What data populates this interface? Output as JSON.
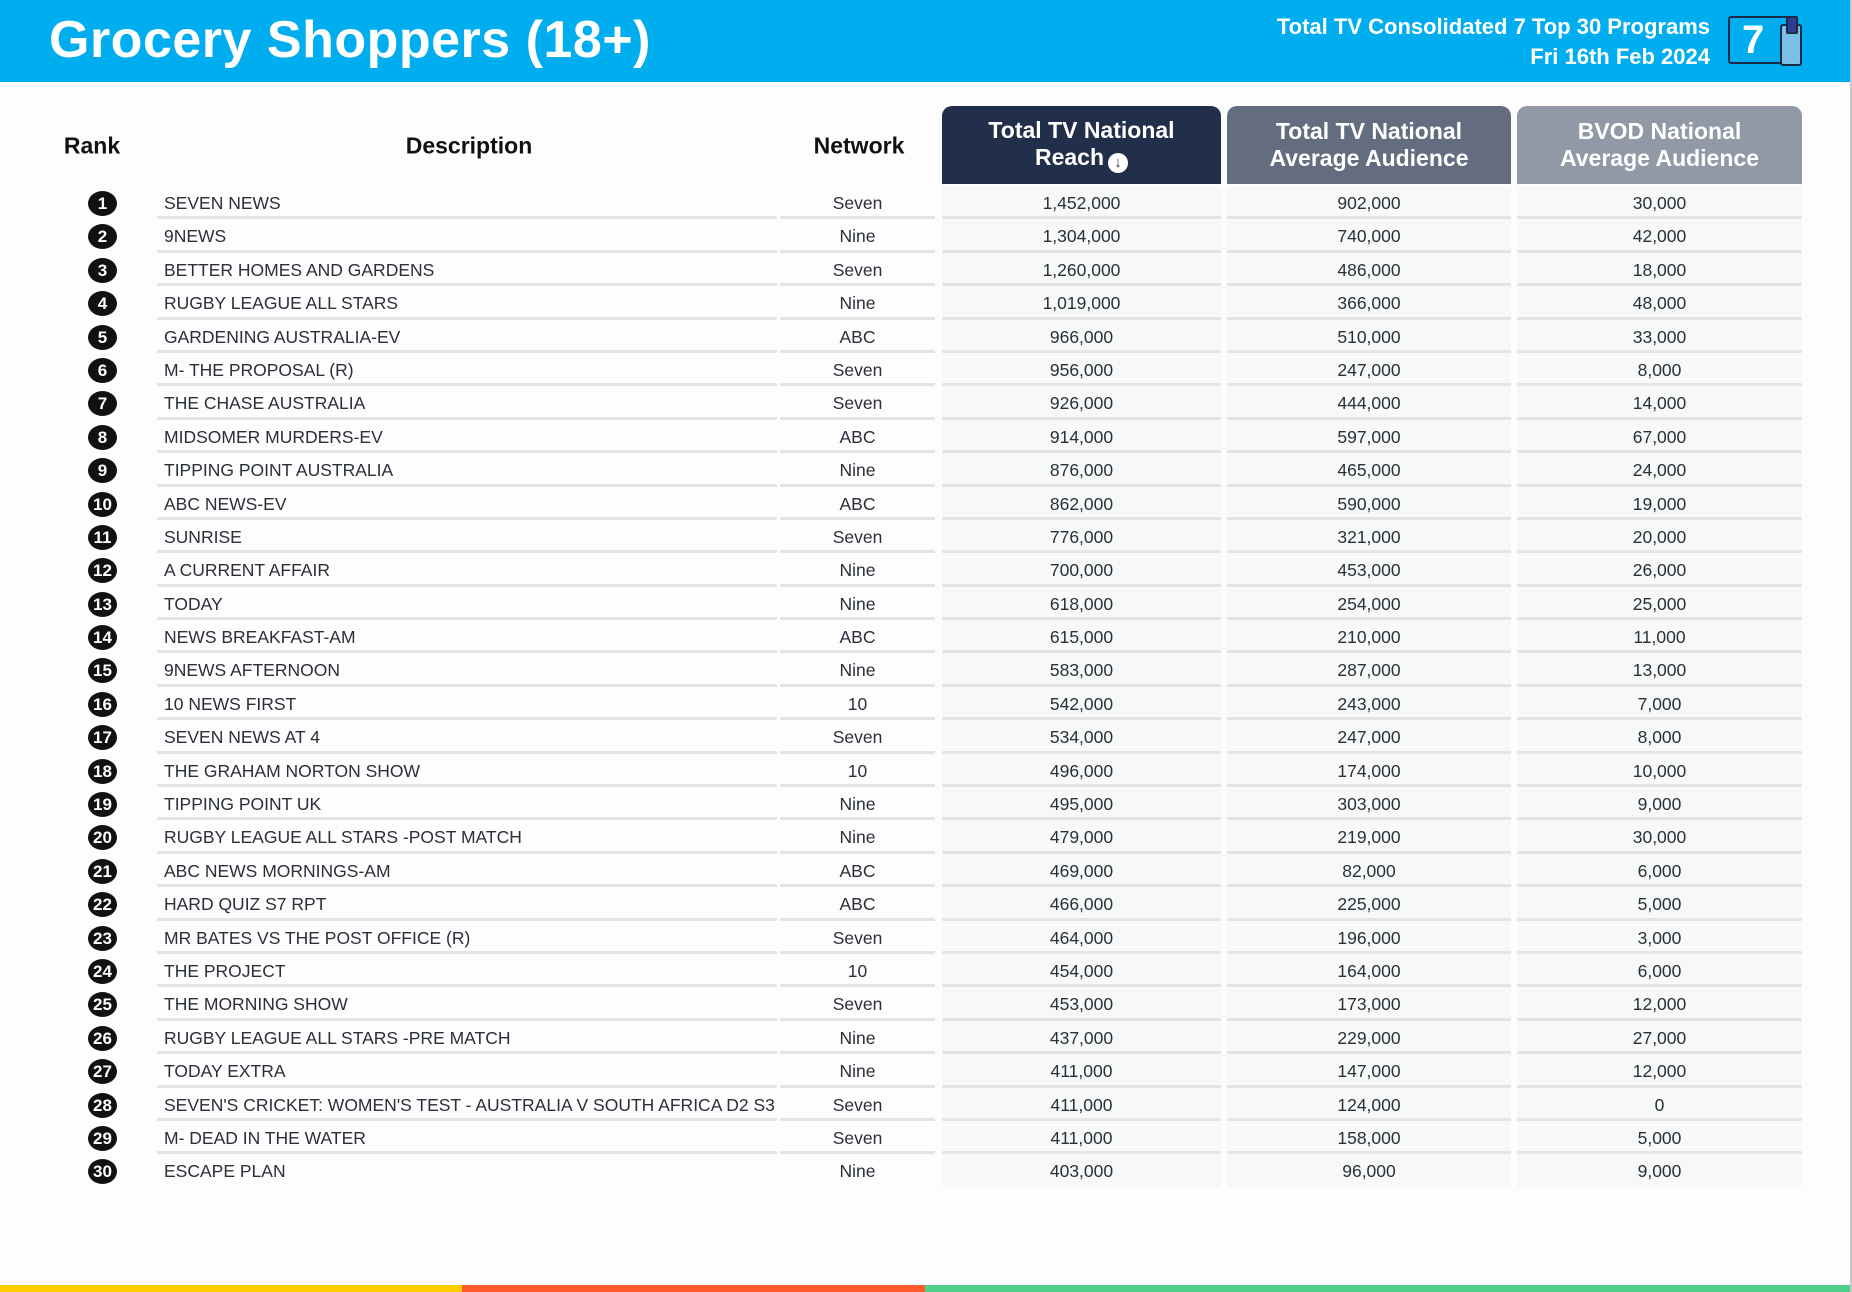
{
  "header": {
    "title": "Grocery Shoppers (18+)",
    "subtitle_line1": "Total TV Consolidated 7 Top 30 Programs",
    "subtitle_line2": "Fri 16th Feb 2024",
    "logo_number": "7",
    "logo_icon": "tv-and-mobile-icon"
  },
  "colors": {
    "header_bg": "#00adef",
    "col1_header": "#222f4a",
    "col2_header": "#646d80",
    "col3_header": "#9199a6",
    "stripe_yellow": "#ffcc00",
    "stripe_orange": "#ff5a2b",
    "stripe_green": "#4fd08a"
  },
  "table": {
    "columns": {
      "rank": "Rank",
      "description": "Description",
      "network": "Network",
      "reach_line1": "Total TV National",
      "reach_line2": "Reach",
      "reach_sort_icon": "↓",
      "avg_line1": "Total TV National",
      "avg_line2": "Average Audience",
      "bvod_line1": "BVOD National",
      "bvod_line2": "Average Audience"
    },
    "rows": [
      {
        "rank": "1",
        "description": "SEVEN NEWS",
        "network": "Seven",
        "reach": "1,452,000",
        "avg": "902,000",
        "bvod": "30,000"
      },
      {
        "rank": "2",
        "description": "9NEWS",
        "network": "Nine",
        "reach": "1,304,000",
        "avg": "740,000",
        "bvod": "42,000"
      },
      {
        "rank": "3",
        "description": "BETTER HOMES AND GARDENS",
        "network": "Seven",
        "reach": "1,260,000",
        "avg": "486,000",
        "bvod": "18,000"
      },
      {
        "rank": "4",
        "description": "RUGBY LEAGUE ALL STARS",
        "network": "Nine",
        "reach": "1,019,000",
        "avg": "366,000",
        "bvod": "48,000"
      },
      {
        "rank": "5",
        "description": "GARDENING AUSTRALIA-EV",
        "network": "ABC",
        "reach": "966,000",
        "avg": "510,000",
        "bvod": "33,000"
      },
      {
        "rank": "6",
        "description": "M- THE PROPOSAL (R)",
        "network": "Seven",
        "reach": "956,000",
        "avg": "247,000",
        "bvod": "8,000"
      },
      {
        "rank": "7",
        "description": "THE CHASE AUSTRALIA",
        "network": "Seven",
        "reach": "926,000",
        "avg": "444,000",
        "bvod": "14,000"
      },
      {
        "rank": "8",
        "description": "MIDSOMER MURDERS-EV",
        "network": "ABC",
        "reach": "914,000",
        "avg": "597,000",
        "bvod": "67,000"
      },
      {
        "rank": "9",
        "description": "TIPPING POINT AUSTRALIA",
        "network": "Nine",
        "reach": "876,000",
        "avg": "465,000",
        "bvod": "24,000"
      },
      {
        "rank": "10",
        "description": "ABC NEWS-EV",
        "network": "ABC",
        "reach": "862,000",
        "avg": "590,000",
        "bvod": "19,000"
      },
      {
        "rank": "11",
        "description": "SUNRISE",
        "network": "Seven",
        "reach": "776,000",
        "avg": "321,000",
        "bvod": "20,000"
      },
      {
        "rank": "12",
        "description": "A CURRENT AFFAIR",
        "network": "Nine",
        "reach": "700,000",
        "avg": "453,000",
        "bvod": "26,000"
      },
      {
        "rank": "13",
        "description": "TODAY",
        "network": "Nine",
        "reach": "618,000",
        "avg": "254,000",
        "bvod": "25,000"
      },
      {
        "rank": "14",
        "description": "NEWS BREAKFAST-AM",
        "network": "ABC",
        "reach": "615,000",
        "avg": "210,000",
        "bvod": "11,000"
      },
      {
        "rank": "15",
        "description": "9NEWS AFTERNOON",
        "network": "Nine",
        "reach": "583,000",
        "avg": "287,000",
        "bvod": "13,000"
      },
      {
        "rank": "16",
        "description": "10 NEWS FIRST",
        "network": "10",
        "reach": "542,000",
        "avg": "243,000",
        "bvod": "7,000"
      },
      {
        "rank": "17",
        "description": "SEVEN NEWS AT 4",
        "network": "Seven",
        "reach": "534,000",
        "avg": "247,000",
        "bvod": "8,000"
      },
      {
        "rank": "18",
        "description": "THE GRAHAM NORTON SHOW",
        "network": "10",
        "reach": "496,000",
        "avg": "174,000",
        "bvod": "10,000"
      },
      {
        "rank": "19",
        "description": "TIPPING POINT UK",
        "network": "Nine",
        "reach": "495,000",
        "avg": "303,000",
        "bvod": "9,000"
      },
      {
        "rank": "20",
        "description": "RUGBY LEAGUE ALL STARS -POST MATCH",
        "network": "Nine",
        "reach": "479,000",
        "avg": "219,000",
        "bvod": "30,000"
      },
      {
        "rank": "21",
        "description": "ABC NEWS MORNINGS-AM",
        "network": "ABC",
        "reach": "469,000",
        "avg": "82,000",
        "bvod": "6,000"
      },
      {
        "rank": "22",
        "description": "HARD QUIZ S7 RPT",
        "network": "ABC",
        "reach": "466,000",
        "avg": "225,000",
        "bvod": "5,000"
      },
      {
        "rank": "23",
        "description": "MR BATES VS THE POST OFFICE (R)",
        "network": "Seven",
        "reach": "464,000",
        "avg": "196,000",
        "bvod": "3,000"
      },
      {
        "rank": "24",
        "description": "THE PROJECT",
        "network": "10",
        "reach": "454,000",
        "avg": "164,000",
        "bvod": "6,000"
      },
      {
        "rank": "25",
        "description": "THE MORNING SHOW",
        "network": "Seven",
        "reach": "453,000",
        "avg": "173,000",
        "bvod": "12,000"
      },
      {
        "rank": "26",
        "description": "RUGBY LEAGUE ALL STARS -PRE MATCH",
        "network": "Nine",
        "reach": "437,000",
        "avg": "229,000",
        "bvod": "27,000"
      },
      {
        "rank": "27",
        "description": "TODAY EXTRA",
        "network": "Nine",
        "reach": "411,000",
        "avg": "147,000",
        "bvod": "12,000"
      },
      {
        "rank": "28",
        "description": "SEVEN'S CRICKET: WOMEN'S TEST - AUSTRALIA V SOUTH AFRICA D2 S3",
        "network": "Seven",
        "reach": "411,000",
        "avg": "124,000",
        "bvod": "0"
      },
      {
        "rank": "29",
        "description": "M- DEAD IN THE WATER",
        "network": "Seven",
        "reach": "411,000",
        "avg": "158,000",
        "bvod": "5,000"
      },
      {
        "rank": "30",
        "description": "ESCAPE PLAN",
        "network": "Nine",
        "reach": "403,000",
        "avg": "96,000",
        "bvod": "9,000"
      }
    ]
  },
  "chart_data": {
    "type": "table",
    "title": "Grocery Shoppers (18+)",
    "subtitle": "Total TV Consolidated 7 Top 30 Programs — Fri 16th Feb 2024",
    "columns": [
      "Rank",
      "Description",
      "Network",
      "Total TV National Reach",
      "Total TV National Average Audience",
      "BVOD National Average Audience"
    ],
    "sorted_by": "Total TV National Reach (descending)",
    "rows": [
      [
        1,
        "SEVEN NEWS",
        "Seven",
        1452000,
        902000,
        30000
      ],
      [
        2,
        "9NEWS",
        "Nine",
        1304000,
        740000,
        42000
      ],
      [
        3,
        "BETTER HOMES AND GARDENS",
        "Seven",
        1260000,
        486000,
        18000
      ],
      [
        4,
        "RUGBY LEAGUE ALL STARS",
        "Nine",
        1019000,
        366000,
        48000
      ],
      [
        5,
        "GARDENING AUSTRALIA-EV",
        "ABC",
        966000,
        510000,
        33000
      ],
      [
        6,
        "M- THE PROPOSAL (R)",
        "Seven",
        956000,
        247000,
        8000
      ],
      [
        7,
        "THE CHASE AUSTRALIA",
        "Seven",
        926000,
        444000,
        14000
      ],
      [
        8,
        "MIDSOMER MURDERS-EV",
        "ABC",
        914000,
        597000,
        67000
      ],
      [
        9,
        "TIPPING POINT AUSTRALIA",
        "Nine",
        876000,
        465000,
        24000
      ],
      [
        10,
        "ABC NEWS-EV",
        "ABC",
        862000,
        590000,
        19000
      ],
      [
        11,
        "SUNRISE",
        "Seven",
        776000,
        321000,
        20000
      ],
      [
        12,
        "A CURRENT AFFAIR",
        "Nine",
        700000,
        453000,
        26000
      ],
      [
        13,
        "TODAY",
        "Nine",
        618000,
        254000,
        25000
      ],
      [
        14,
        "NEWS BREAKFAST-AM",
        "ABC",
        615000,
        210000,
        11000
      ],
      [
        15,
        "9NEWS AFTERNOON",
        "Nine",
        583000,
        287000,
        13000
      ],
      [
        16,
        "10 NEWS FIRST",
        "10",
        542000,
        243000,
        7000
      ],
      [
        17,
        "SEVEN NEWS AT 4",
        "Seven",
        534000,
        247000,
        8000
      ],
      [
        18,
        "THE GRAHAM NORTON SHOW",
        "10",
        496000,
        174000,
        10000
      ],
      [
        19,
        "TIPPING POINT UK",
        "Nine",
        495000,
        303000,
        9000
      ],
      [
        20,
        "RUGBY LEAGUE ALL STARS -POST MATCH",
        "Nine",
        479000,
        219000,
        30000
      ],
      [
        21,
        "ABC NEWS MORNINGS-AM",
        "ABC",
        469000,
        82000,
        6000
      ],
      [
        22,
        "HARD QUIZ S7 RPT",
        "ABC",
        466000,
        225000,
        5000
      ],
      [
        23,
        "MR BATES VS THE POST OFFICE (R)",
        "Seven",
        464000,
        196000,
        3000
      ],
      [
        24,
        "THE PROJECT",
        "10",
        454000,
        164000,
        6000
      ],
      [
        25,
        "THE MORNING SHOW",
        "Seven",
        453000,
        173000,
        12000
      ],
      [
        26,
        "RUGBY LEAGUE ALL STARS -PRE MATCH",
        "Nine",
        437000,
        229000,
        27000
      ],
      [
        27,
        "TODAY EXTRA",
        "Nine",
        411000,
        147000,
        12000
      ],
      [
        28,
        "SEVEN'S CRICKET: WOMEN'S TEST - AUSTRALIA V SOUTH AFRICA D2 S3",
        "Seven",
        411000,
        124000,
        0
      ],
      [
        29,
        "M- DEAD IN THE WATER",
        "Seven",
        411000,
        158000,
        5000
      ],
      [
        30,
        "ESCAPE PLAN",
        "Nine",
        403000,
        96000,
        9000
      ]
    ]
  }
}
